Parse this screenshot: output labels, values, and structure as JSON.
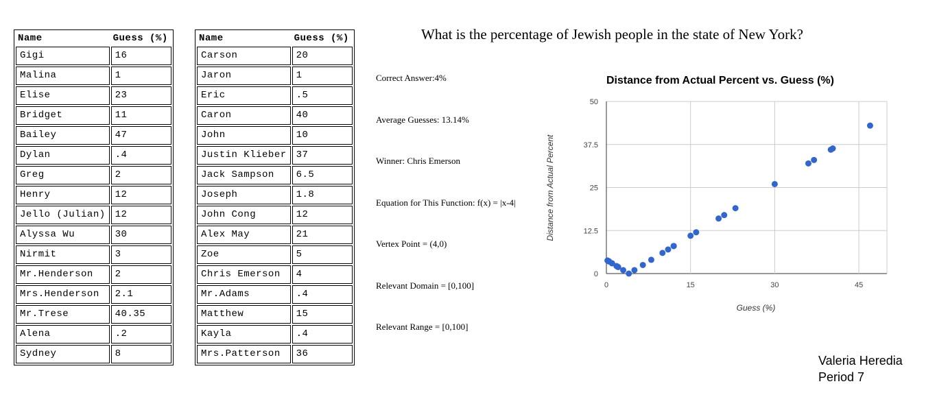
{
  "table_left": {
    "headers": [
      "Name",
      "Guess (%)"
    ],
    "rows": [
      [
        "Gigi",
        "16"
      ],
      [
        "Malina",
        "1"
      ],
      [
        "Elise",
        "23"
      ],
      [
        "Bridget",
        "11"
      ],
      [
        "Bailey",
        "47"
      ],
      [
        "Dylan",
        ".4"
      ],
      [
        "Greg",
        "2"
      ],
      [
        "Henry",
        "12"
      ],
      [
        "Jello (Julian)",
        "12"
      ],
      [
        "Alyssa Wu",
        "30"
      ],
      [
        "Nirmit",
        "3"
      ],
      [
        "Mr.Henderson",
        "2"
      ],
      [
        "Mrs.Henderson",
        "2.1"
      ],
      [
        "Mr.Trese",
        "40.35"
      ],
      [
        "Alena",
        ".2"
      ],
      [
        "Sydney",
        "8"
      ]
    ]
  },
  "table_right": {
    "headers": [
      "Name",
      "Guess (%)"
    ],
    "rows": [
      [
        "Carson",
        "20"
      ],
      [
        "Jaron",
        "1"
      ],
      [
        "Eric",
        ".5"
      ],
      [
        "Caron",
        "40"
      ],
      [
        "John",
        "10"
      ],
      [
        "Justin Klieber",
        "37"
      ],
      [
        "Jack Sampson",
        "6.5"
      ],
      [
        "Joseph",
        "1.8"
      ],
      [
        "John Cong",
        "12"
      ],
      [
        "Alex May",
        "21"
      ],
      [
        "Zoe",
        "5"
      ],
      [
        "Chris Emerson",
        "4"
      ],
      [
        "Mr.Adams",
        ".4"
      ],
      [
        "Matthew",
        "15"
      ],
      [
        "Kayla",
        ".4"
      ],
      [
        "Mrs.Patterson",
        "36"
      ]
    ]
  },
  "question": "What is the percentage of Jewish people in the state of New York?",
  "facts": {
    "correct_answer": "Correct Answer:4%",
    "average_guesses": "Average Guesses: 13.14%",
    "winner": "Winner: Chris Emerson",
    "equation": "Equation for This Function: f(x) = |x-4|",
    "vertex": "Vertex Point = (4,0)",
    "domain": "Relevant Domain = [0,100]",
    "range": "Relevant Range = [0,100]"
  },
  "chart_data": {
    "type": "scatter",
    "title": "Distance from Actual Percent vs. Guess (%)",
    "xlabel": "Guess (%)",
    "ylabel": "Distance from Actual Percent",
    "xlim": [
      0,
      50
    ],
    "ylim": [
      0,
      50
    ],
    "x_ticks": [
      "0",
      "15",
      "30",
      "45"
    ],
    "x_tick_values": [
      0,
      15,
      30,
      45
    ],
    "y_ticks": [
      "0",
      "12.5",
      "25",
      "37.5",
      "50"
    ],
    "y_tick_values": [
      0,
      12.5,
      25,
      37.5,
      50
    ],
    "grid": true,
    "legend": "none",
    "point_color": "#3366cc",
    "x": [
      16,
      1,
      23,
      11,
      47,
      0.4,
      2,
      12,
      12,
      30,
      3,
      2,
      2.1,
      40.35,
      0.2,
      8,
      20,
      1,
      0.5,
      40,
      10,
      37,
      6.5,
      1.8,
      12,
      21,
      5,
      4,
      0.4,
      15,
      0.4,
      36
    ],
    "y": [
      12,
      3,
      19,
      7,
      43,
      3.6,
      2,
      8,
      8,
      26,
      1,
      2,
      1.9,
      36.35,
      3.8,
      4,
      16,
      3,
      3.5,
      36,
      6,
      33,
      2.5,
      2.2,
      8,
      17,
      1,
      0,
      3.6,
      11,
      3.6,
      32
    ]
  },
  "signature": {
    "name": "Valeria Heredia",
    "period": "Period 7"
  }
}
